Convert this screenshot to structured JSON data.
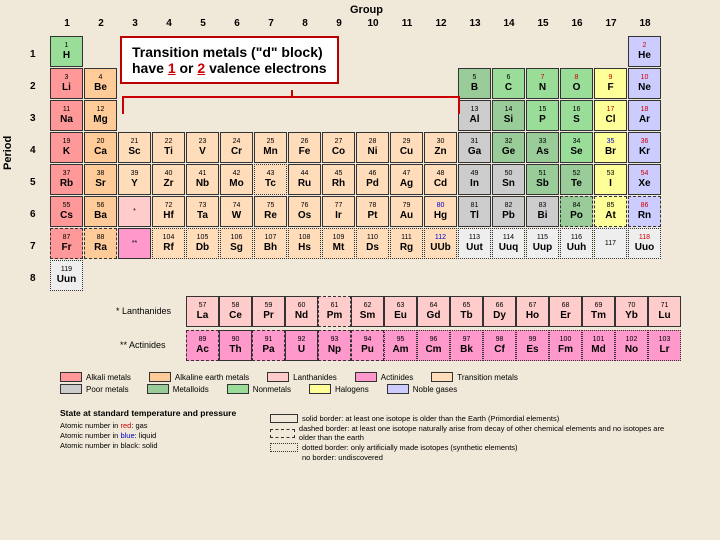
{
  "labels": {
    "group": "Group",
    "period": "Period"
  },
  "annotation": {
    "line1": "Transition metals (\"d\" block)",
    "line2a": "have ",
    "one": "1",
    "or": " or ",
    "two": "2",
    "line2b": " valence electrons"
  },
  "lan_label": "* Lanthanides",
  "act_label": "** Actinides",
  "colors": {
    "alkali": "#ff9999",
    "alkaline": "#ffcc99",
    "lanth": "#ffcccc",
    "act": "#ff99cc",
    "trans": "#ffddbb",
    "poor": "#cccccc",
    "metalloid": "#99cc99",
    "nonmetal": "#99dd99",
    "halogen": "#ffff99",
    "noble": "#ccccff",
    "unknown": "#eeeeee"
  },
  "elements": [
    {
      "n": 1,
      "s": "H",
      "g": 1,
      "p": 1,
      "c": "nonmetal",
      "st": "g"
    },
    {
      "n": 2,
      "s": "He",
      "g": 18,
      "p": 1,
      "c": "noble",
      "st": "g",
      "nc": "red"
    },
    {
      "n": 3,
      "s": "Li",
      "g": 1,
      "p": 2,
      "c": "alkali"
    },
    {
      "n": 4,
      "s": "Be",
      "g": 2,
      "p": 2,
      "c": "alkaline"
    },
    {
      "n": 5,
      "s": "B",
      "g": 13,
      "p": 2,
      "c": "metalloid"
    },
    {
      "n": 6,
      "s": "C",
      "g": 14,
      "p": 2,
      "c": "nonmetal"
    },
    {
      "n": 7,
      "s": "N",
      "g": 15,
      "p": 2,
      "c": "nonmetal",
      "nc": "red"
    },
    {
      "n": 8,
      "s": "O",
      "g": 16,
      "p": 2,
      "c": "nonmetal",
      "nc": "red"
    },
    {
      "n": 9,
      "s": "F",
      "g": 17,
      "p": 2,
      "c": "halogen",
      "nc": "red"
    },
    {
      "n": 10,
      "s": "Ne",
      "g": 18,
      "p": 2,
      "c": "noble",
      "nc": "red"
    },
    {
      "n": 11,
      "s": "Na",
      "g": 1,
      "p": 3,
      "c": "alkali"
    },
    {
      "n": 12,
      "s": "Mg",
      "g": 2,
      "p": 3,
      "c": "alkaline"
    },
    {
      "n": 13,
      "s": "Al",
      "g": 13,
      "p": 3,
      "c": "poor"
    },
    {
      "n": 14,
      "s": "Si",
      "g": 14,
      "p": 3,
      "c": "metalloid"
    },
    {
      "n": 15,
      "s": "P",
      "g": 15,
      "p": 3,
      "c": "nonmetal"
    },
    {
      "n": 16,
      "s": "S",
      "g": 16,
      "p": 3,
      "c": "nonmetal"
    },
    {
      "n": 17,
      "s": "Cl",
      "g": 17,
      "p": 3,
      "c": "halogen",
      "nc": "red"
    },
    {
      "n": 18,
      "s": "Ar",
      "g": 18,
      "p": 3,
      "c": "noble",
      "nc": "red"
    },
    {
      "n": 19,
      "s": "K",
      "g": 1,
      "p": 4,
      "c": "alkali"
    },
    {
      "n": 20,
      "s": "Ca",
      "g": 2,
      "p": 4,
      "c": "alkaline"
    },
    {
      "n": 21,
      "s": "Sc",
      "g": 3,
      "p": 4,
      "c": "trans"
    },
    {
      "n": 22,
      "s": "Ti",
      "g": 4,
      "p": 4,
      "c": "trans"
    },
    {
      "n": 23,
      "s": "V",
      "g": 5,
      "p": 4,
      "c": "trans"
    },
    {
      "n": 24,
      "s": "Cr",
      "g": 6,
      "p": 4,
      "c": "trans"
    },
    {
      "n": 25,
      "s": "Mn",
      "g": 7,
      "p": 4,
      "c": "trans"
    },
    {
      "n": 26,
      "s": "Fe",
      "g": 8,
      "p": 4,
      "c": "trans"
    },
    {
      "n": 27,
      "s": "Co",
      "g": 9,
      "p": 4,
      "c": "trans"
    },
    {
      "n": 28,
      "s": "Ni",
      "g": 10,
      "p": 4,
      "c": "trans"
    },
    {
      "n": 29,
      "s": "Cu",
      "g": 11,
      "p": 4,
      "c": "trans"
    },
    {
      "n": 30,
      "s": "Zn",
      "g": 12,
      "p": 4,
      "c": "trans"
    },
    {
      "n": 31,
      "s": "Ga",
      "g": 13,
      "p": 4,
      "c": "poor"
    },
    {
      "n": 32,
      "s": "Ge",
      "g": 14,
      "p": 4,
      "c": "metalloid"
    },
    {
      "n": 33,
      "s": "As",
      "g": 15,
      "p": 4,
      "c": "metalloid"
    },
    {
      "n": 34,
      "s": "Se",
      "g": 16,
      "p": 4,
      "c": "nonmetal"
    },
    {
      "n": 35,
      "s": "Br",
      "g": 17,
      "p": 4,
      "c": "halogen",
      "nc": "blue"
    },
    {
      "n": 36,
      "s": "Kr",
      "g": 18,
      "p": 4,
      "c": "noble",
      "nc": "red"
    },
    {
      "n": 37,
      "s": "Rb",
      "g": 1,
      "p": 5,
      "c": "alkali"
    },
    {
      "n": 38,
      "s": "Sr",
      "g": 2,
      "p": 5,
      "c": "alkaline"
    },
    {
      "n": 39,
      "s": "Y",
      "g": 3,
      "p": 5,
      "c": "trans"
    },
    {
      "n": 40,
      "s": "Zr",
      "g": 4,
      "p": 5,
      "c": "trans"
    },
    {
      "n": 41,
      "s": "Nb",
      "g": 5,
      "p": 5,
      "c": "trans"
    },
    {
      "n": 42,
      "s": "Mo",
      "g": 6,
      "p": 5,
      "c": "trans"
    },
    {
      "n": 43,
      "s": "Tc",
      "g": 7,
      "p": 5,
      "c": "trans",
      "b": "dotted"
    },
    {
      "n": 44,
      "s": "Ru",
      "g": 8,
      "p": 5,
      "c": "trans"
    },
    {
      "n": 45,
      "s": "Rh",
      "g": 9,
      "p": 5,
      "c": "trans"
    },
    {
      "n": 46,
      "s": "Pd",
      "g": 10,
      "p": 5,
      "c": "trans"
    },
    {
      "n": 47,
      "s": "Ag",
      "g": 11,
      "p": 5,
      "c": "trans"
    },
    {
      "n": 48,
      "s": "Cd",
      "g": 12,
      "p": 5,
      "c": "trans"
    },
    {
      "n": 49,
      "s": "In",
      "g": 13,
      "p": 5,
      "c": "poor"
    },
    {
      "n": 50,
      "s": "Sn",
      "g": 14,
      "p": 5,
      "c": "poor"
    },
    {
      "n": 51,
      "s": "Sb",
      "g": 15,
      "p": 5,
      "c": "metalloid"
    },
    {
      "n": 52,
      "s": "Te",
      "g": 16,
      "p": 5,
      "c": "metalloid"
    },
    {
      "n": 53,
      "s": "I",
      "g": 17,
      "p": 5,
      "c": "halogen"
    },
    {
      "n": 54,
      "s": "Xe",
      "g": 18,
      "p": 5,
      "c": "noble",
      "nc": "red"
    },
    {
      "n": 55,
      "s": "Cs",
      "g": 1,
      "p": 6,
      "c": "alkali"
    },
    {
      "n": 56,
      "s": "Ba",
      "g": 2,
      "p": 6,
      "c": "alkaline"
    },
    {
      "n": "*",
      "s": "",
      "g": 3,
      "p": 6,
      "c": "lanth"
    },
    {
      "n": 72,
      "s": "Hf",
      "g": 4,
      "p": 6,
      "c": "trans"
    },
    {
      "n": 73,
      "s": "Ta",
      "g": 5,
      "p": 6,
      "c": "trans"
    },
    {
      "n": 74,
      "s": "W",
      "g": 6,
      "p": 6,
      "c": "trans"
    },
    {
      "n": 75,
      "s": "Re",
      "g": 7,
      "p": 6,
      "c": "trans"
    },
    {
      "n": 76,
      "s": "Os",
      "g": 8,
      "p": 6,
      "c": "trans"
    },
    {
      "n": 77,
      "s": "Ir",
      "g": 9,
      "p": 6,
      "c": "trans"
    },
    {
      "n": 78,
      "s": "Pt",
      "g": 10,
      "p": 6,
      "c": "trans"
    },
    {
      "n": 79,
      "s": "Au",
      "g": 11,
      "p": 6,
      "c": "trans"
    },
    {
      "n": 80,
      "s": "Hg",
      "g": 12,
      "p": 6,
      "c": "trans",
      "nc": "blue"
    },
    {
      "n": 81,
      "s": "Tl",
      "g": 13,
      "p": 6,
      "c": "poor"
    },
    {
      "n": 82,
      "s": "Pb",
      "g": 14,
      "p": 6,
      "c": "poor"
    },
    {
      "n": 83,
      "s": "Bi",
      "g": 15,
      "p": 6,
      "c": "poor"
    },
    {
      "n": 84,
      "s": "Po",
      "g": 16,
      "p": 6,
      "c": "metalloid",
      "b": "dashed"
    },
    {
      "n": 85,
      "s": "At",
      "g": 17,
      "p": 6,
      "c": "halogen",
      "b": "dashed"
    },
    {
      "n": 86,
      "s": "Rn",
      "g": 18,
      "p": 6,
      "c": "noble",
      "nc": "red",
      "b": "dashed"
    },
    {
      "n": 87,
      "s": "Fr",
      "g": 1,
      "p": 7,
      "c": "alkali",
      "b": "dashed"
    },
    {
      "n": 88,
      "s": "Ra",
      "g": 2,
      "p": 7,
      "c": "alkaline",
      "b": "dashed"
    },
    {
      "n": "**",
      "s": "",
      "g": 3,
      "p": 7,
      "c": "act"
    },
    {
      "n": 104,
      "s": "Rf",
      "g": 4,
      "p": 7,
      "c": "trans",
      "b": "dotted"
    },
    {
      "n": 105,
      "s": "Db",
      "g": 5,
      "p": 7,
      "c": "trans",
      "b": "dotted"
    },
    {
      "n": 106,
      "s": "Sg",
      "g": 6,
      "p": 7,
      "c": "trans",
      "b": "dotted"
    },
    {
      "n": 107,
      "s": "Bh",
      "g": 7,
      "p": 7,
      "c": "trans",
      "b": "dotted"
    },
    {
      "n": 108,
      "s": "Hs",
      "g": 8,
      "p": 7,
      "c": "trans",
      "b": "dotted"
    },
    {
      "n": 109,
      "s": "Mt",
      "g": 9,
      "p": 7,
      "c": "trans",
      "b": "dotted"
    },
    {
      "n": 110,
      "s": "Ds",
      "g": 10,
      "p": 7,
      "c": "trans",
      "b": "dotted"
    },
    {
      "n": 111,
      "s": "Rg",
      "g": 11,
      "p": 7,
      "c": "trans",
      "b": "dotted"
    },
    {
      "n": 112,
      "s": "UUb",
      "g": 12,
      "p": 7,
      "c": "trans",
      "b": "dotted",
      "nc": "blue"
    },
    {
      "n": 113,
      "s": "Uut",
      "g": 13,
      "p": 7,
      "c": "unknown",
      "b": "dotted"
    },
    {
      "n": 114,
      "s": "Uuq",
      "g": 14,
      "p": 7,
      "c": "unknown",
      "b": "dotted"
    },
    {
      "n": 115,
      "s": "Uup",
      "g": 15,
      "p": 7,
      "c": "unknown",
      "b": "dotted"
    },
    {
      "n": 116,
      "s": "Uuh",
      "g": 16,
      "p": 7,
      "c": "unknown",
      "b": "dotted"
    },
    {
      "n": 117,
      "s": "",
      "g": 17,
      "p": 7,
      "c": "unknown",
      "b": "dotted"
    },
    {
      "n": 118,
      "s": "Uuo",
      "g": 18,
      "p": 7,
      "c": "unknown",
      "b": "dotted",
      "nc": "red"
    },
    {
      "n": 119,
      "s": "Uun",
      "g": 1,
      "p": 8,
      "c": "unknown",
      "b": "dotted"
    }
  ],
  "lanth": [
    {
      "n": 57,
      "s": "La"
    },
    {
      "n": 58,
      "s": "Ce"
    },
    {
      "n": 59,
      "s": "Pr"
    },
    {
      "n": 60,
      "s": "Nd"
    },
    {
      "n": 61,
      "s": "Pm",
      "b": "dashed"
    },
    {
      "n": 62,
      "s": "Sm"
    },
    {
      "n": 63,
      "s": "Eu"
    },
    {
      "n": 64,
      "s": "Gd"
    },
    {
      "n": 65,
      "s": "Tb"
    },
    {
      "n": 66,
      "s": "Dy"
    },
    {
      "n": 67,
      "s": "Ho"
    },
    {
      "n": 68,
      "s": "Er"
    },
    {
      "n": 69,
      "s": "Tm"
    },
    {
      "n": 70,
      "s": "Yb"
    },
    {
      "n": 71,
      "s": "Lu"
    }
  ],
  "act": [
    {
      "n": 89,
      "s": "Ac",
      "b": "dashed"
    },
    {
      "n": 90,
      "s": "Th"
    },
    {
      "n": 91,
      "s": "Pa",
      "b": "dashed"
    },
    {
      "n": 92,
      "s": "U"
    },
    {
      "n": 93,
      "s": "Np",
      "b": "dashed"
    },
    {
      "n": 94,
      "s": "Pu",
      "b": "dashed"
    },
    {
      "n": 95,
      "s": "Am",
      "b": "dotted"
    },
    {
      "n": 96,
      "s": "Cm",
      "b": "dotted"
    },
    {
      "n": 97,
      "s": "Bk",
      "b": "dotted"
    },
    {
      "n": 98,
      "s": "Cf",
      "b": "dotted"
    },
    {
      "n": 99,
      "s": "Es",
      "b": "dotted"
    },
    {
      "n": 100,
      "s": "Fm",
      "b": "dotted"
    },
    {
      "n": 101,
      "s": "Md",
      "b": "dotted"
    },
    {
      "n": 102,
      "s": "No",
      "b": "dotted"
    },
    {
      "n": 103,
      "s": "Lr",
      "b": "dotted"
    }
  ],
  "legend": [
    {
      "label": "Alkali metals",
      "c": "alkali"
    },
    {
      "label": "Alkaline earth metals",
      "c": "alkaline"
    },
    {
      "label": "Lanthanides",
      "c": "lanth"
    },
    {
      "label": "Actinides",
      "c": "act"
    },
    {
      "label": "Transition metals",
      "c": "trans"
    },
    {
      "label": "Poor metals",
      "c": "poor"
    },
    {
      "label": "Metalloids",
      "c": "metalloid"
    },
    {
      "label": "Nonmetals",
      "c": "nonmetal"
    },
    {
      "label": "Halogens",
      "c": "halogen"
    },
    {
      "label": "Noble gases",
      "c": "noble"
    }
  ],
  "state_title": "State at standard temperature and pressure",
  "state_rows": [
    {
      "t": "Atomic number in ",
      "em": "red",
      "emc": "#c00",
      "t2": ": gas"
    },
    {
      "t": "Atomic number in ",
      "em": "blue",
      "emc": "#00c",
      "t2": ": liquid"
    },
    {
      "t": "Atomic number in black: solid",
      "em": "",
      "t2": ""
    }
  ],
  "border_rows": [
    {
      "style": "solid",
      "t": "solid border: at least one isotope is older than the Earth (Primordial elements)"
    },
    {
      "style": "dashed",
      "t": "dashed border: at least one isotope naturally arise from decay of other chemical elements and no isotopes are older than the earth"
    },
    {
      "style": "dotted",
      "t": "dotted border: only artificially made isotopes (synthetic elements)"
    },
    {
      "style": "none",
      "t": "no border: undiscovered"
    }
  ]
}
